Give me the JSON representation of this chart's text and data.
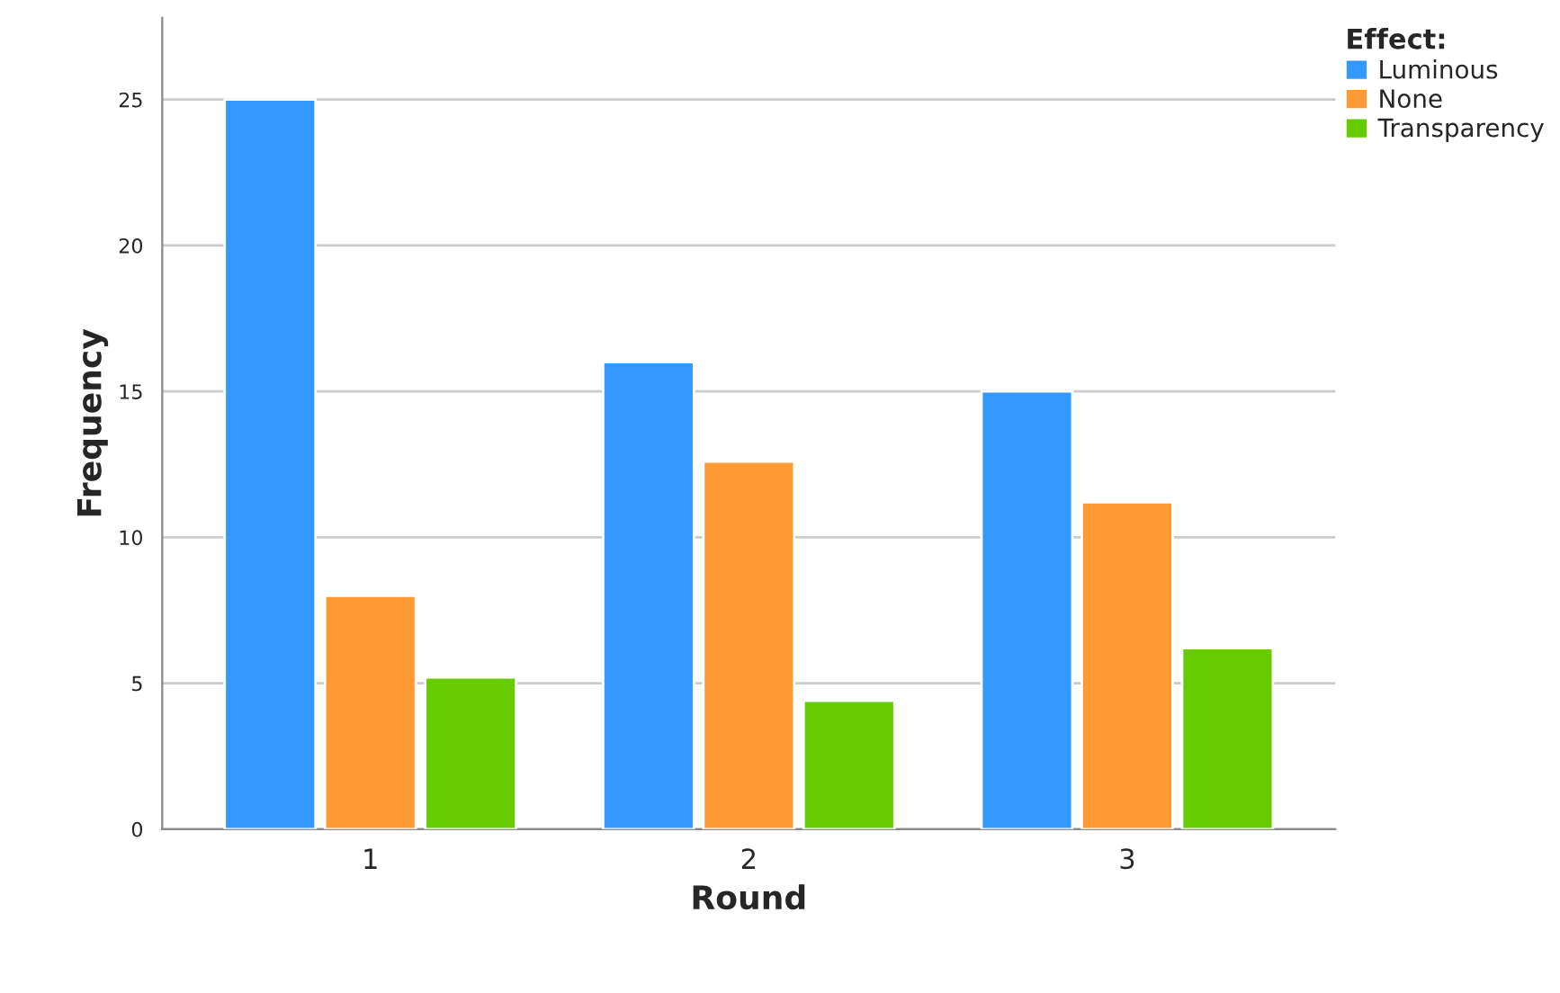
{
  "chart_data": {
    "type": "bar",
    "xlabel": "Round",
    "ylabel": "Frequency",
    "legend_title": "Effect:",
    "categories": [
      "1",
      "2",
      "3"
    ],
    "series": [
      {
        "name": "Luminous",
        "color": "#3399ff",
        "values": [
          25,
          16,
          15
        ]
      },
      {
        "name": "None",
        "color": "#ff9933",
        "values": [
          8,
          12.6,
          11.2
        ]
      },
      {
        "name": "Transparency",
        "color": "#66cc00",
        "values": [
          5.2,
          4.4,
          6.2
        ]
      }
    ],
    "ylim": [
      0,
      27.8
    ],
    "yticks": [
      0,
      5,
      10,
      15,
      20,
      25
    ],
    "grid": "y",
    "legend": "top right"
  }
}
